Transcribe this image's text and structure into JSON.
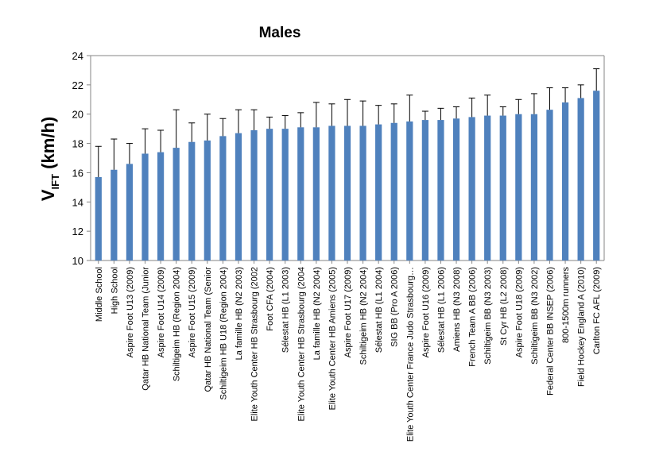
{
  "chart_data": {
    "type": "bar",
    "title": "Males",
    "ylabel": "V",
    "ylabel_subscript": "IFT",
    "ylabel_unit": "(km/h)",
    "xlabel": "",
    "ylim": [
      10,
      24
    ],
    "yticks": [
      10,
      12,
      14,
      16,
      18,
      20,
      22,
      24
    ],
    "grid": false,
    "legend": "none",
    "bar_color": "#4F81BD",
    "error_color": "#000000",
    "categories": [
      "Middle School",
      "High School",
      "Aspire Foot U13 (2009)",
      "Qatar HB National Team (Junior",
      "Aspire Foot U14 (2009)",
      "Schiltigeim HB (Region 2004)",
      "Aspire Foot U15 (2009)",
      "Qatar HB National Team (Senior",
      "Schiltigeim HB U18 (Region 2004)",
      "La famille HB (N2 2003)",
      "Elite Youth Center HB Strasbourg (2002",
      "Foot CFA (2004)",
      "Sélestat HB (L1 2003)",
      "Elite Youth Center HB Strasbourg (2004",
      "La famille HB  (N2 2004)",
      "Elite Youth Center HB Amiens (2005)",
      "Aspire Foot U17 (2009)",
      "Schiltigeim HB (N2 2004)",
      "Sélestat HB (L1 2004)",
      "SIG BB (Pro A 2006)",
      "Elite Youth Center France Judo Strasbourg…",
      "Aspire Foot U16 (2009)",
      "Sélestat HB (L1 2006)",
      "Amiens HB (N3 2008)",
      "French Team A BB (2006)",
      "Schiltigeim BB (N3 2003)",
      "St Cyr HB (L2 2008)",
      "Aspire Foot U18 (2009)",
      "Schiltigeim BB  (N3 2002)",
      "Federal Center BB INSEP (2006)",
      "800-1500m runners",
      "Field Hockey England A (2010)",
      "Carlton FC AFL (2009)"
    ],
    "values": [
      15.7,
      16.2,
      16.6,
      17.3,
      17.4,
      17.7,
      18.1,
      18.2,
      18.5,
      18.7,
      18.9,
      19.0,
      19.0,
      19.1,
      19.1,
      19.2,
      19.2,
      19.2,
      19.3,
      19.4,
      19.5,
      19.6,
      19.6,
      19.7,
      19.8,
      19.9,
      19.9,
      20.0,
      20.0,
      20.3,
      20.8,
      21.1,
      21.6
    ],
    "error_upper": [
      17.8,
      18.3,
      18.0,
      19.0,
      18.9,
      20.3,
      19.4,
      20.0,
      19.7,
      20.3,
      20.3,
      19.8,
      19.9,
      20.1,
      20.8,
      20.7,
      21.0,
      20.9,
      20.6,
      20.7,
      21.3,
      20.2,
      20.4,
      20.5,
      21.1,
      21.3,
      20.5,
      21.0,
      21.4,
      21.8,
      21.8,
      22.0,
      23.1
    ]
  }
}
